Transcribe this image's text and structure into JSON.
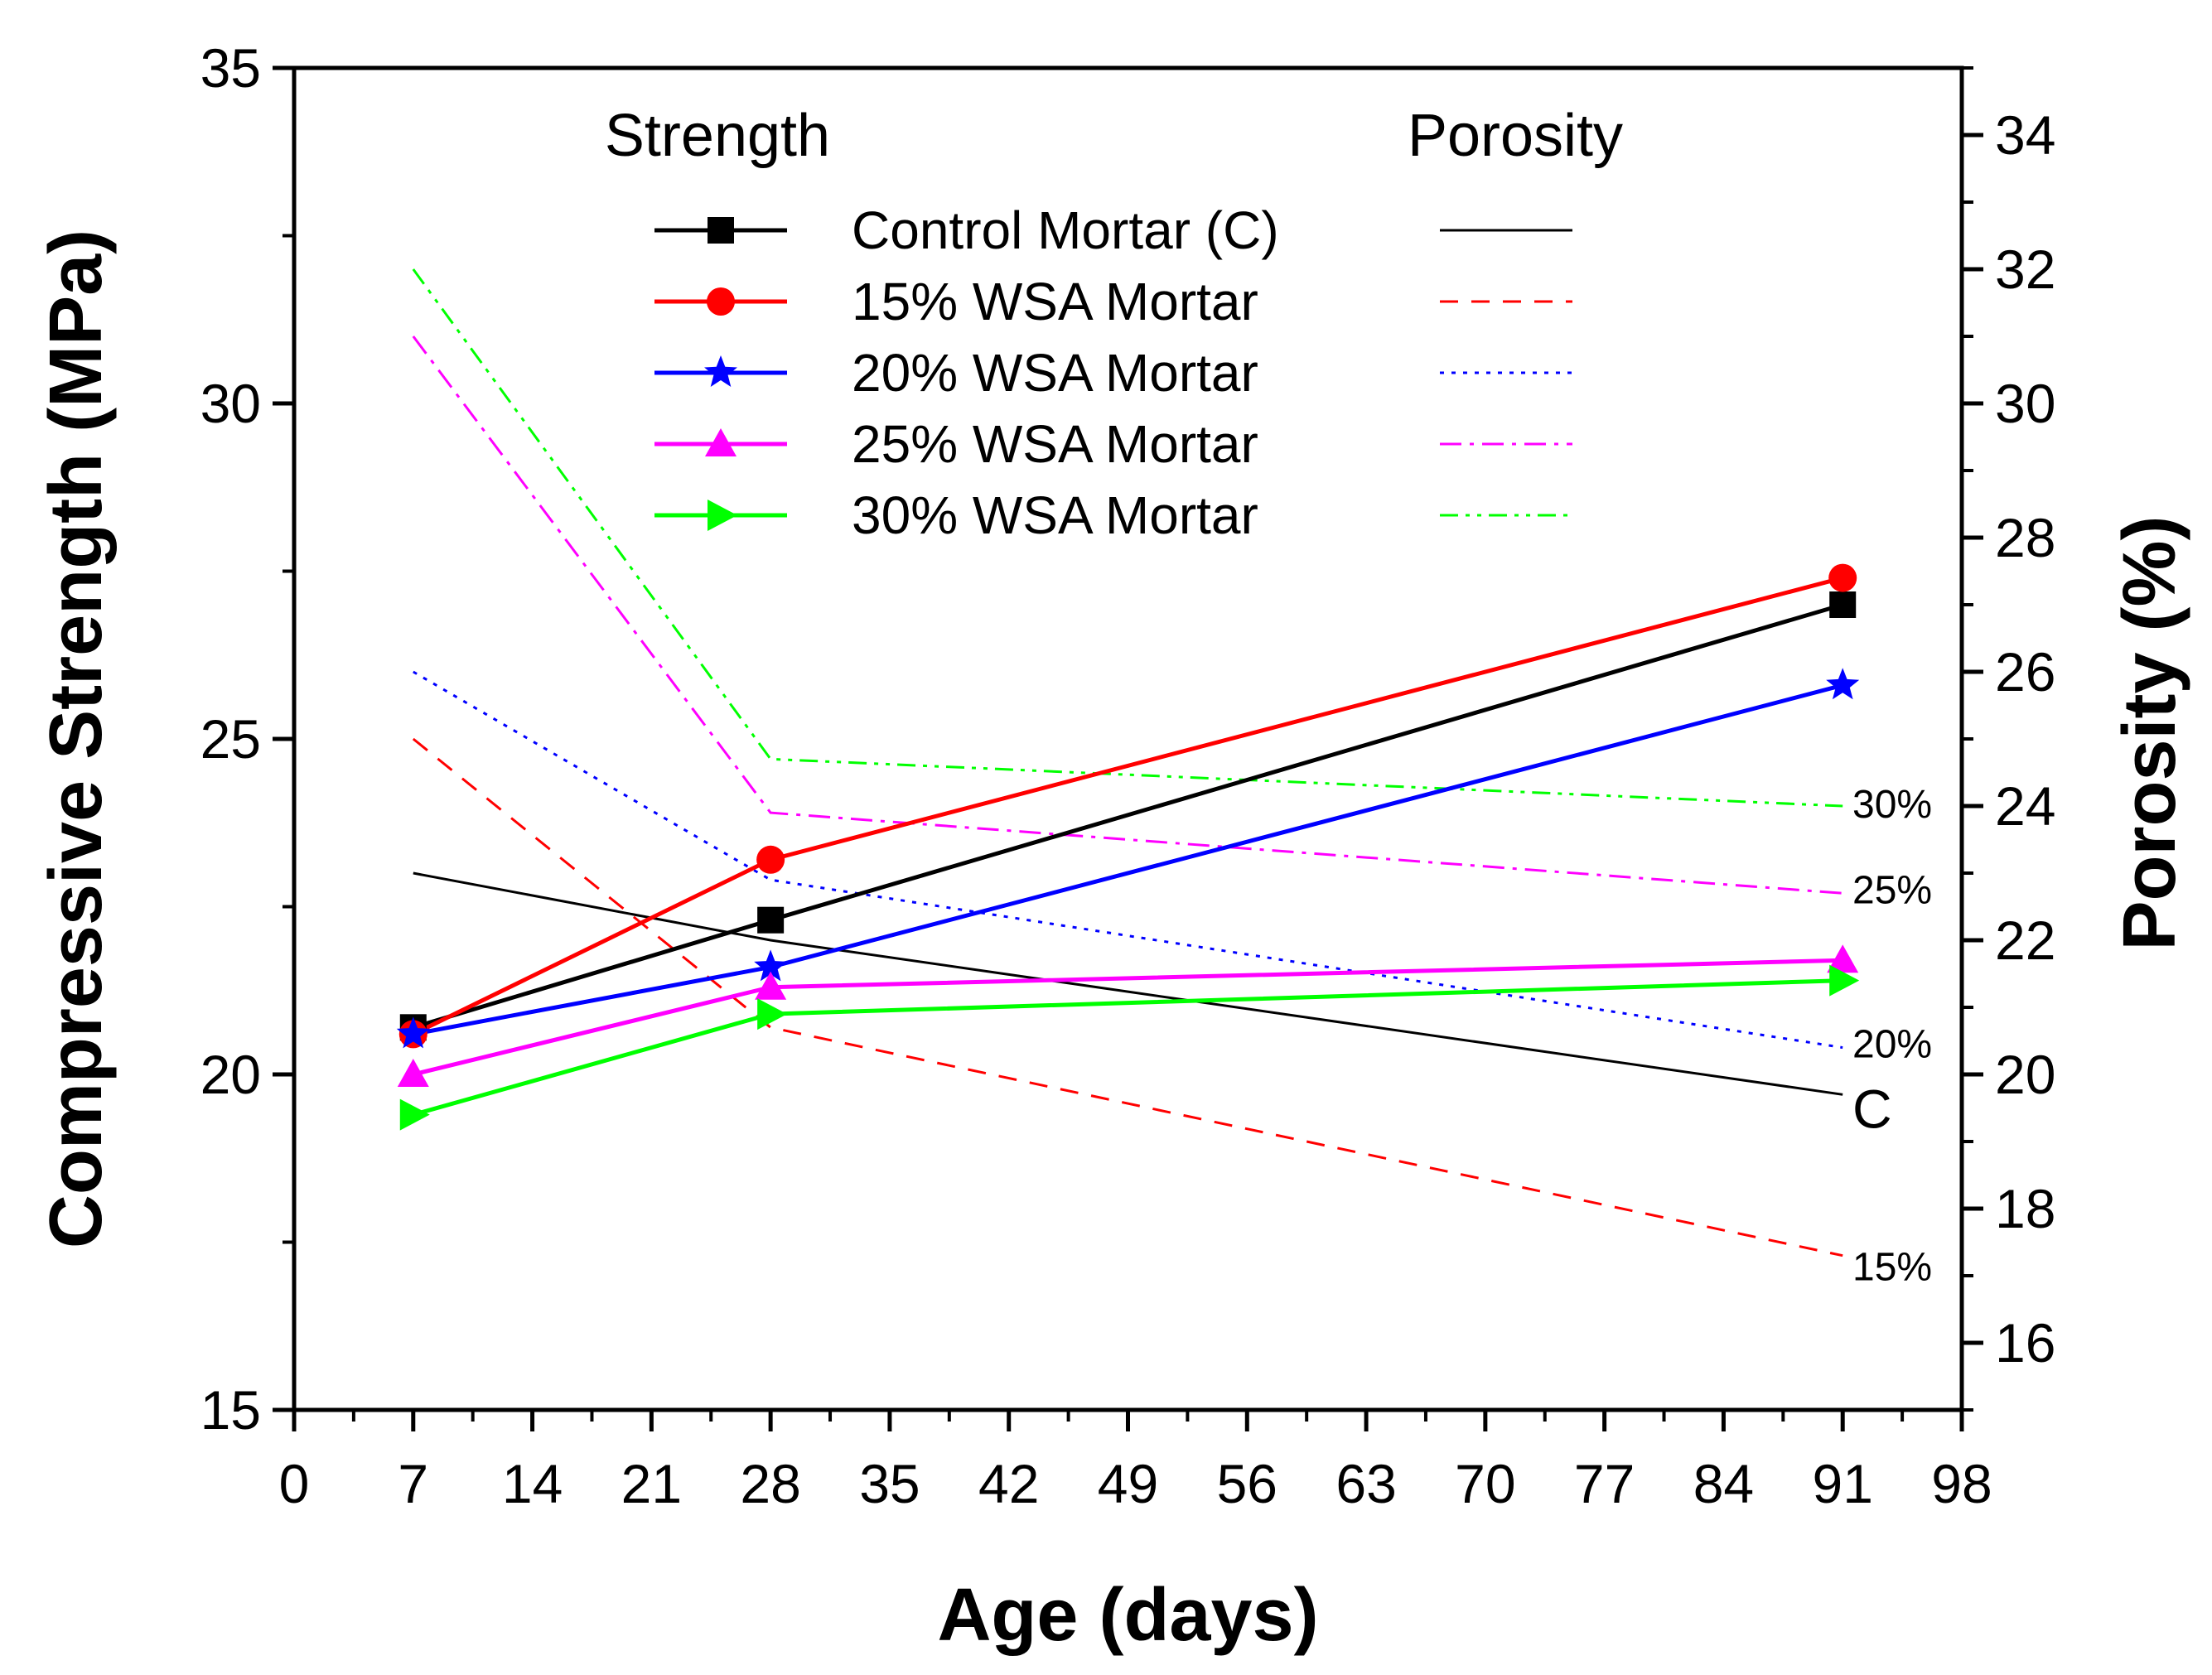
{
  "chart_data": {
    "type": "line",
    "x": [
      7,
      28,
      91
    ],
    "xlabel": "Age (days)",
    "ylabel": "Compressive Strength (MPa)",
    "y2label": "Porosity (%)",
    "xlim": [
      0,
      98
    ],
    "ylim": [
      15,
      35
    ],
    "y2lim": [
      15,
      35
    ],
    "xticks": [
      "0",
      "7",
      "14",
      "21",
      "28",
      "35",
      "42",
      "49",
      "56",
      "63",
      "70",
      "77",
      "84",
      "91",
      "98"
    ],
    "yticks": [
      "15",
      "20",
      "25",
      "30",
      "35"
    ],
    "y2ticks": [
      "16",
      "18",
      "20",
      "22",
      "24",
      "26",
      "28",
      "30",
      "32",
      "34"
    ],
    "legend_headers": {
      "strength": "Strength",
      "porosity": "Porosity"
    },
    "strength_series": [
      {
        "name": "Control Mortar (C)",
        "color": "#000000",
        "marker": "square",
        "values": [
          20.7,
          22.3,
          27.0
        ]
      },
      {
        "name": "15% WSA Mortar",
        "color": "#ff0000",
        "marker": "circle",
        "values": [
          20.6,
          23.2,
          27.4
        ]
      },
      {
        "name": "20% WSA Mortar",
        "color": "#0000ff",
        "marker": "star",
        "values": [
          20.6,
          21.6,
          25.8
        ]
      },
      {
        "name": "25% WSA Mortar",
        "color": "#ff00ff",
        "marker": "triangle-up",
        "values": [
          20.0,
          21.3,
          21.7
        ]
      },
      {
        "name": "30% WSA Mortar",
        "color": "#00ff00",
        "marker": "triangle-right",
        "values": [
          19.4,
          20.9,
          21.4
        ]
      }
    ],
    "porosity_series": [
      {
        "name": "Control Mortar (C)",
        "color": "#000000",
        "dash": "solid",
        "values": [
          23.0,
          22.0,
          19.7
        ],
        "end_label": "C"
      },
      {
        "name": "15% WSA Mortar",
        "color": "#ff0000",
        "dash": "dash",
        "values": [
          25.0,
          20.7,
          17.3
        ],
        "end_label": "15%"
      },
      {
        "name": "20% WSA Mortar",
        "color": "#0000ff",
        "dash": "dot",
        "values": [
          26.0,
          22.9,
          20.4
        ],
        "end_label": "20%"
      },
      {
        "name": "25% WSA Mortar",
        "color": "#ff00ff",
        "dash": "dashdot",
        "values": [
          31.0,
          23.9,
          22.7
        ],
        "end_label": "25%"
      },
      {
        "name": "30% WSA Mortar",
        "color": "#00ff00",
        "dash": "dashdotdot",
        "values": [
          32.0,
          24.7,
          24.0
        ],
        "end_label": "30%"
      }
    ]
  }
}
